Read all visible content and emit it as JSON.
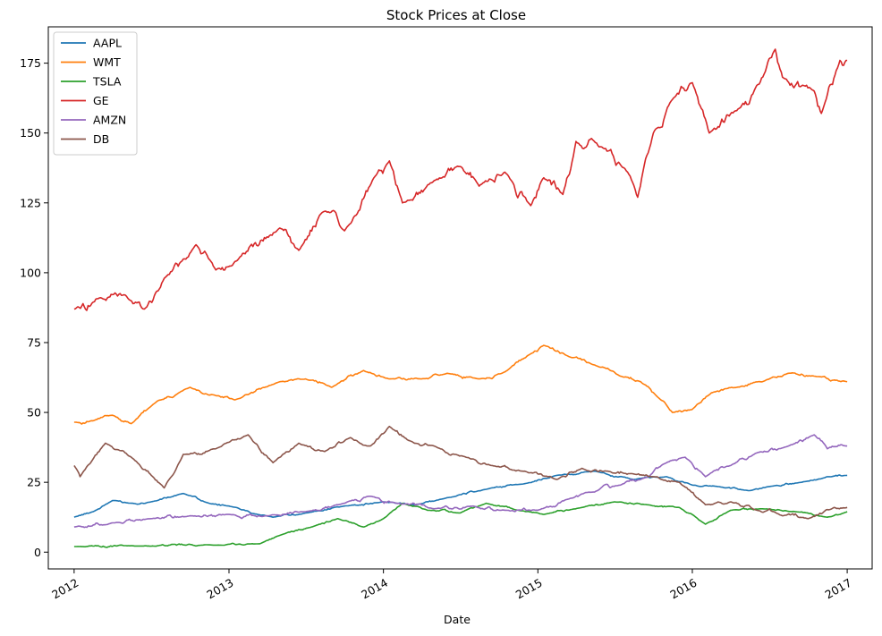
{
  "chart_data": {
    "type": "line",
    "title": "Stock Prices at Close",
    "xlabel": "Date",
    "ylabel": "",
    "xlim": [
      "2011-11-01",
      "2017-03-01"
    ],
    "ylim": [
      -6,
      188
    ],
    "x_ticks": [
      "2012",
      "2013",
      "2014",
      "2015",
      "2016",
      "2017"
    ],
    "y_ticks": [
      0,
      25,
      50,
      75,
      100,
      125,
      150,
      175
    ],
    "grid": false,
    "legend": "top-left",
    "series": [
      {
        "name": "AAPL",
        "color": "#1f77b4",
        "x": [
          "2012-01-01",
          "2012-02-15",
          "2012-04-01",
          "2012-05-15",
          "2012-07-01",
          "2012-09-15",
          "2012-11-15",
          "2013-01-01",
          "2013-04-15",
          "2013-07-01",
          "2013-10-01",
          "2014-01-01",
          "2014-03-15",
          "2014-06-01",
          "2014-09-01",
          "2014-12-01",
          "2015-02-15",
          "2015-05-15",
          "2015-08-15",
          "2015-11-01",
          "2016-01-01",
          "2016-03-01",
          "2016-05-15",
          "2016-07-01",
          "2016-09-15",
          "2016-11-15",
          "2017-01-01"
        ],
        "values": [
          12.5,
          14.5,
          18.5,
          17.5,
          18.0,
          21.0,
          17.5,
          16.5,
          12.5,
          14.0,
          16.5,
          18.0,
          17.0,
          19.5,
          22.5,
          24.5,
          27.5,
          29.0,
          26.0,
          27.0,
          24.0,
          23.5,
          22.0,
          23.5,
          25.0,
          27.0,
          27.5
        ]
      },
      {
        "name": "WMT",
        "color": "#ff7f0e",
        "x": [
          "2012-01-01",
          "2012-02-15",
          "2012-04-01",
          "2012-05-15",
          "2012-07-15",
          "2012-10-01",
          "2012-12-01",
          "2013-01-15",
          "2013-05-01",
          "2013-07-01",
          "2013-09-01",
          "2013-11-15",
          "2014-01-15",
          "2014-04-01",
          "2014-06-01",
          "2014-08-15",
          "2014-10-15",
          "2014-12-15",
          "2015-01-15",
          "2015-03-15",
          "2015-05-15",
          "2015-07-15",
          "2015-09-01",
          "2015-10-15",
          "2015-11-15",
          "2015-12-31",
          "2016-02-15",
          "2016-04-15",
          "2016-06-15",
          "2016-08-15",
          "2016-10-15",
          "2017-01-01"
        ],
        "values": [
          46.5,
          47.0,
          49.0,
          46.0,
          54.0,
          59.0,
          56.0,
          54.5,
          61.0,
          62.0,
          59.0,
          65.0,
          62.0,
          62.0,
          64.0,
          62.0,
          64.5,
          71.0,
          74.0,
          70.0,
          67.0,
          63.0,
          61.0,
          55.0,
          50.0,
          51.0,
          57.0,
          59.0,
          61.0,
          64.0,
          63.0,
          61.0
        ]
      },
      {
        "name": "TSLA",
        "color": "#2ca02c",
        "x": [
          "2012-01-01",
          "2012-06-01",
          "2012-12-01",
          "2013-03-15",
          "2013-05-01",
          "2013-07-15",
          "2013-09-15",
          "2013-11-15",
          "2014-01-01",
          "2014-02-15",
          "2014-04-15",
          "2014-07-01",
          "2014-09-01",
          "2014-11-15",
          "2015-01-15",
          "2015-04-15",
          "2015-07-01",
          "2015-09-15",
          "2015-12-01",
          "2016-02-01",
          "2016-04-01",
          "2016-06-15",
          "2016-09-01",
          "2016-11-15",
          "2017-01-01"
        ],
        "values": [
          2.0,
          2.2,
          2.5,
          3.0,
          6.0,
          9.0,
          12.0,
          9.0,
          12.0,
          17.5,
          15.0,
          14.0,
          17.5,
          15.0,
          13.5,
          16.0,
          18.0,
          17.0,
          16.0,
          10.0,
          15.0,
          15.5,
          14.5,
          12.5,
          14.5
        ]
      },
      {
        "name": "GE",
        "color": "#d62728",
        "x": [
          "2012-01-01",
          "2012-03-01",
          "2012-05-01",
          "2012-06-15",
          "2012-08-01",
          "2012-10-15",
          "2012-12-01",
          "2013-01-15",
          "2013-05-01",
          "2013-06-15",
          "2013-08-15",
          "2013-10-01",
          "2013-12-15",
          "2014-01-15",
          "2014-02-15",
          "2014-05-01",
          "2014-07-01",
          "2014-08-15",
          "2014-10-15",
          "2014-12-15",
          "2015-01-15",
          "2015-03-01",
          "2015-04-01",
          "2015-06-01",
          "2015-08-01",
          "2015-08-25",
          "2015-10-01",
          "2015-11-15",
          "2016-01-01",
          "2016-02-10",
          "2016-04-15",
          "2016-06-01",
          "2016-07-15",
          "2016-08-01",
          "2016-10-15",
          "2016-11-01",
          "2016-12-15",
          "2017-01-01"
        ],
        "values": [
          87,
          91,
          92,
          87,
          98,
          110,
          101,
          104,
          116,
          108,
          122,
          115,
          135,
          140,
          125,
          133,
          138,
          131,
          136,
          124,
          134,
          128,
          147,
          145,
          136,
          127,
          150,
          162,
          168,
          150,
          158,
          167,
          180,
          170,
          165,
          157,
          176,
          176
        ]
      },
      {
        "name": "AMZN",
        "color": "#9467bd",
        "x": [
          "2012-01-01",
          "2012-04-01",
          "2012-07-01",
          "2012-10-01",
          "2013-01-01",
          "2013-04-01",
          "2013-07-01",
          "2013-10-01",
          "2013-12-01",
          "2014-02-01",
          "2014-05-01",
          "2014-08-01",
          "2014-10-15",
          "2015-01-01",
          "2015-03-15",
          "2015-05-15",
          "2015-07-15",
          "2015-09-01",
          "2015-11-01",
          "2015-12-15",
          "2016-02-01",
          "2016-04-01",
          "2016-06-01",
          "2016-08-15",
          "2016-10-15",
          "2016-11-15",
          "2017-01-01"
        ],
        "values": [
          9.0,
          10.5,
          12.0,
          13.0,
          13.5,
          13.0,
          14.5,
          17.5,
          20.0,
          17.5,
          15.5,
          16.5,
          15.0,
          15.0,
          19.0,
          21.5,
          24.0,
          26.0,
          32.0,
          34.0,
          27.0,
          31.0,
          35.5,
          38.0,
          42.0,
          37.0,
          38.0
        ]
      },
      {
        "name": "DB",
        "color": "#8c564b",
        "x": [
          "2012-01-01",
          "2012-01-15",
          "2012-03-15",
          "2012-05-15",
          "2012-08-01",
          "2012-09-15",
          "2012-12-01",
          "2013-02-15",
          "2013-04-15",
          "2013-06-15",
          "2013-08-15",
          "2013-10-15",
          "2013-12-01",
          "2014-01-15",
          "2014-03-01",
          "2014-05-01",
          "2014-07-15",
          "2014-09-15",
          "2014-12-01",
          "2015-02-15",
          "2015-04-15",
          "2015-06-15",
          "2015-08-15",
          "2015-10-01",
          "2015-12-01",
          "2016-02-01",
          "2016-04-01",
          "2016-06-01",
          "2016-08-01",
          "2016-10-01",
          "2016-12-01",
          "2017-01-01"
        ],
        "values": [
          31,
          27,
          39,
          34,
          23,
          35,
          37,
          42,
          32,
          39,
          36,
          41,
          38,
          45,
          40,
          38,
          34,
          31,
          29,
          26,
          30,
          29,
          28,
          27,
          25,
          17,
          18,
          15,
          13,
          12,
          16,
          16
        ]
      }
    ]
  }
}
